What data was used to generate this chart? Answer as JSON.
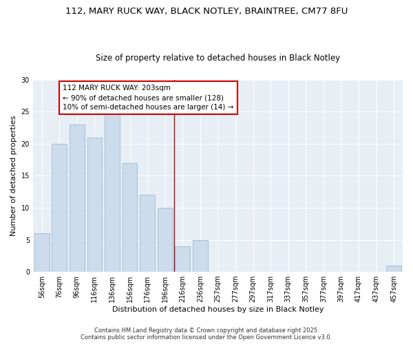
{
  "title_line1": "112, MARY RUCK WAY, BLACK NOTLEY, BRAINTREE, CM77 8FU",
  "title_line2": "Size of property relative to detached houses in Black Notley",
  "xlabel": "Distribution of detached houses by size in Black Notley",
  "ylabel": "Number of detached properties",
  "categories": [
    "56sqm",
    "76sqm",
    "96sqm",
    "116sqm",
    "136sqm",
    "156sqm",
    "176sqm",
    "196sqm",
    "216sqm",
    "236sqm",
    "257sqm",
    "277sqm",
    "297sqm",
    "317sqm",
    "337sqm",
    "357sqm",
    "377sqm",
    "397sqm",
    "417sqm",
    "437sqm",
    "457sqm"
  ],
  "values": [
    6,
    20,
    23,
    21,
    25,
    17,
    12,
    10,
    4,
    5,
    0,
    0,
    0,
    0,
    0,
    0,
    0,
    0,
    0,
    0,
    1
  ],
  "bar_color": "#ccdcec",
  "bar_edge_color": "#9ab8d4",
  "vline_x": 7,
  "vline_color": "#cc0000",
  "annotation_text": "112 MARY RUCK WAY: 203sqm\n← 90% of detached houses are smaller (128)\n10% of semi-detached houses are larger (14) →",
  "annotation_box_color": "white",
  "annotation_box_edge_color": "#cc0000",
  "ylim": [
    0,
    30
  ],
  "yticks": [
    0,
    5,
    10,
    15,
    20,
    25,
    30
  ],
  "background_color": "#e8eef5",
  "footer_line1": "Contains HM Land Registry data © Crown copyright and database right 2025.",
  "footer_line2": "Contains public sector information licensed under the Open Government Licence v3.0.",
  "title_fontsize": 9.5,
  "subtitle_fontsize": 8.5,
  "label_fontsize": 8,
  "tick_fontsize": 7,
  "annotation_fontsize": 7.5,
  "footer_fontsize": 6
}
